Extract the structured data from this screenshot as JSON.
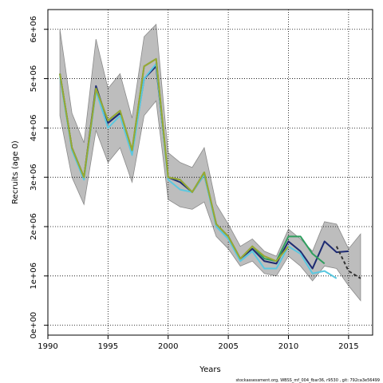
{
  "chart_data": {
    "type": "line",
    "xlabel": "Years",
    "ylabel": "Recruits (age 0)",
    "xlim": [
      1990,
      2017
    ],
    "ylim": [
      -200000,
      6400000
    ],
    "x_ticks": [
      1990,
      1995,
      2000,
      2005,
      2010,
      2015
    ],
    "y_ticks": [
      {
        "value": 0,
        "label": "0e+00"
      },
      {
        "value": 1000000,
        "label": "1e+06"
      },
      {
        "value": 2000000,
        "label": "2e+06"
      },
      {
        "value": 3000000,
        "label": "3e+06"
      },
      {
        "value": 4000000,
        "label": "4e+06"
      },
      {
        "value": 5000000,
        "label": "5e+06"
      },
      {
        "value": 6000000,
        "label": "6e+06"
      }
    ],
    "grid": true,
    "confidence_band": {
      "x": [
        1991,
        1992,
        1993,
        1994,
        1995,
        1996,
        1997,
        1998,
        1999,
        2000,
        2001,
        2002,
        2003,
        2004,
        2005,
        2006,
        2007,
        2008,
        2009,
        2010,
        2011,
        2012,
        2013,
        2014,
        2015,
        2016
      ],
      "upper": [
        6000000,
        4300000,
        3700000,
        5800000,
        4800000,
        5100000,
        4200000,
        5850000,
        6100000,
        3500000,
        3300000,
        3200000,
        3600000,
        2450000,
        2050000,
        1600000,
        1750000,
        1500000,
        1400000,
        1950000,
        1750000,
        1500000,
        2100000,
        2050000,
        1550000,
        1850000
      ],
      "lower": [
        4250000,
        3000000,
        2450000,
        3950000,
        3300000,
        3600000,
        2900000,
        4250000,
        4550000,
        2550000,
        2400000,
        2350000,
        2500000,
        1800000,
        1550000,
        1200000,
        1300000,
        1050000,
        1000000,
        1400000,
        1200000,
        900000,
        1200000,
        1150000,
        800000,
        500000
      ]
    },
    "series": [
      {
        "color": "#1e2b73",
        "dashed": false,
        "x": [
          1991,
          1992,
          1993,
          1994,
          1995,
          1996,
          1997,
          1998,
          1999,
          2000,
          2001,
          2002,
          2003,
          2004,
          2005,
          2006,
          2007,
          2008,
          2009,
          2010,
          2011,
          2012,
          2013,
          2014,
          2015
        ],
        "values": [
          5100000,
          3600000,
          3000000,
          4850000,
          4100000,
          4300000,
          3500000,
          5000000,
          5250000,
          3000000,
          2900000,
          2700000,
          3050000,
          2050000,
          1800000,
          1350000,
          1550000,
          1300000,
          1250000,
          1700000,
          1500000,
          1150000,
          1700000,
          1480000,
          1500000
        ]
      },
      {
        "color": "#333333",
        "dashed": true,
        "x": [
          2014,
          2015,
          2016
        ],
        "values": [
          1600000,
          1100000,
          950000
        ]
      },
      {
        "color": "#5bc8e0",
        "dashed": false,
        "x": [
          1991,
          1992,
          1993,
          1994,
          1995,
          1996,
          1997,
          1998,
          1999,
          2000,
          2001,
          2002,
          2003,
          2004,
          2005,
          2006,
          2007,
          2008,
          2009,
          2010,
          2011,
          2012,
          2013,
          2014
        ],
        "values": [
          5050000,
          3550000,
          2950000,
          4750000,
          4000000,
          4250000,
          3450000,
          5000000,
          5300000,
          2950000,
          2750000,
          2700000,
          3050000,
          2000000,
          1750000,
          1300000,
          1500000,
          1150000,
          1150000,
          1600000,
          1450000,
          1050000,
          1100000,
          950000
        ]
      },
      {
        "color": "#2e9e5e",
        "dashed": false,
        "x": [
          1991,
          1992,
          1993,
          1994,
          1995,
          1996,
          1997,
          1998,
          1999,
          2000,
          2001,
          2002,
          2003,
          2004,
          2005,
          2006,
          2007,
          2008,
          2009,
          2010,
          2011,
          2012,
          2013
        ],
        "values": [
          5100000,
          3600000,
          3000000,
          4800000,
          4150000,
          4350000,
          3550000,
          5250000,
          5400000,
          3000000,
          2950000,
          2700000,
          3100000,
          2050000,
          1800000,
          1350000,
          1600000,
          1350000,
          1300000,
          1800000,
          1800000,
          1450000,
          1250000
        ]
      },
      {
        "color": "#9aa832",
        "dashed": false,
        "x": [
          1991,
          1992,
          1993,
          1994,
          1995,
          1996,
          1997,
          1998,
          1999,
          2000,
          2001,
          2002,
          2003,
          2004,
          2005,
          2006,
          2007,
          2008,
          2009,
          2010
        ],
        "values": [
          5100000,
          3600000,
          3000000,
          4800000,
          4150000,
          4350000,
          3550000,
          5250000,
          5400000,
          3000000,
          2950000,
          2700000,
          3100000,
          2050000,
          1800000,
          1350000,
          1600000,
          1400000,
          1300000,
          1600000
        ]
      }
    ],
    "footer": "stockassessment.org, WBSS_mf_004_fbar36, r9530 , git: 792ca3e56499"
  }
}
